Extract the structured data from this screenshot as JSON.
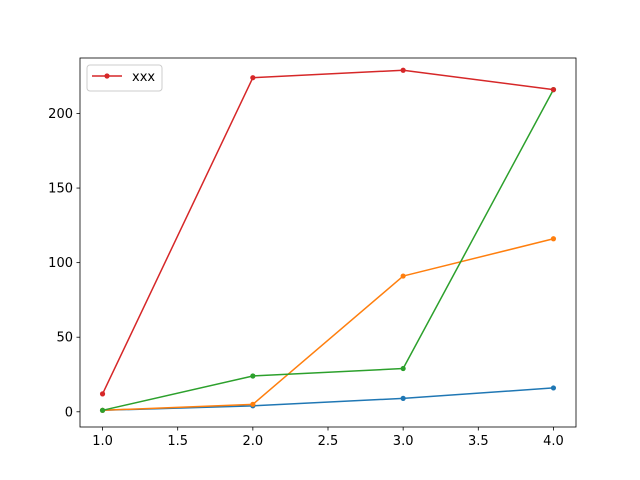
{
  "chart_data": {
    "type": "line",
    "x": [
      1.0,
      2.0,
      3.0,
      4.0
    ],
    "series": [
      {
        "values": [
          1,
          4,
          9,
          16
        ],
        "color": "#1f77b4"
      },
      {
        "values": [
          1,
          5,
          91,
          116
        ],
        "color": "#ff7f0e"
      },
      {
        "values": [
          1,
          24,
          29,
          216
        ],
        "color": "#2ca02c"
      },
      {
        "name": "xxx",
        "values": [
          12,
          224,
          229,
          216
        ],
        "color": "#d62728"
      }
    ],
    "xlim": [
      0.85,
      4.15
    ],
    "ylim": [
      -10.2,
      237.2
    ],
    "xticks": [
      1.0,
      1.5,
      2.0,
      2.5,
      3.0,
      3.5,
      4.0
    ],
    "xtick_labels": [
      "1.0",
      "1.5",
      "2.0",
      "2.5",
      "3.0",
      "3.5",
      "4.0"
    ],
    "yticks": [
      0,
      50,
      100,
      150,
      200
    ],
    "ytick_labels": [
      "0",
      "50",
      "100",
      "150",
      "200"
    ],
    "grid": false,
    "legend": {
      "placement": "top-left",
      "entries": [
        "xxx"
      ]
    },
    "markers": "point"
  }
}
